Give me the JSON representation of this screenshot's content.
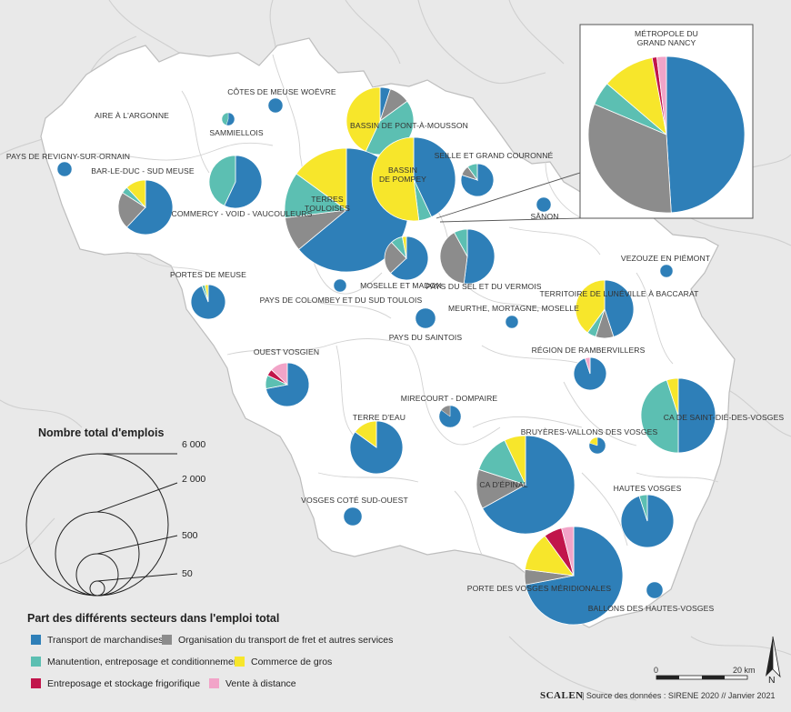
{
  "legend": {
    "size_title": "Nombre total d'emplois",
    "size_values": [
      "6 000",
      "2 000",
      "500",
      "50"
    ],
    "sector_title": "Part des différents secteurs dans l'emploi total",
    "sectors": [
      {
        "key": "transport",
        "label": "Transport de marchandises",
        "color": "#2e7fb8"
      },
      {
        "key": "organisation",
        "label": "Organisation du transport de fret et autres services",
        "color": "#8c8c8c"
      },
      {
        "key": "manutention",
        "label": "Manutention, entreposage et conditionnement",
        "color": "#5cbfb2"
      },
      {
        "key": "commerce",
        "label": "Commerce de gros",
        "color": "#f7e62b"
      },
      {
        "key": "frigo",
        "label": "Entreposage et stockage frigorifique",
        "color": "#c1154b"
      },
      {
        "key": "vente",
        "label": "Vente à distance",
        "color": "#f2a4c8"
      }
    ]
  },
  "inset": {
    "title_line1": "MÉTROPOLE DU",
    "title_line2": "GRAND NANCY"
  },
  "scale": {
    "zero": "0",
    "max": "20 km"
  },
  "north": "N",
  "footer": {
    "brand": "SCALEN",
    "source": "|  Source des données : SIRENE 2020  // Janvier 2021"
  },
  "territories": [
    {
      "name": "AIRE À L'ARGONNE",
      "shares": [
        100,
        0,
        0,
        0,
        0,
        0
      ]
    },
    {
      "name": "CÔTES DE MEUSE WOËVRE",
      "shares": [
        100,
        0,
        0,
        0,
        0,
        0
      ]
    },
    {
      "name": "SAMMIELLOIS",
      "shares": [
        55,
        0,
        45,
        0,
        0,
        0
      ]
    },
    {
      "name": "PAYS DE REVIGNY-SUR-ORNAIN",
      "shares": [
        100,
        0,
        0,
        0,
        0,
        0
      ]
    },
    {
      "name": "BAR-LE-DUC - SUD MEUSE",
      "shares": [
        62,
        22,
        4,
        12,
        0,
        0
      ]
    },
    {
      "name": "COMMERCY - VOID - VAUCOULEURS",
      "shares": [
        57,
        0,
        43,
        0,
        0,
        0
      ]
    },
    {
      "name": "BASSIN DE PONT-À-MOUSSON",
      "shares": [
        5,
        10,
        42,
        43,
        0,
        0
      ]
    },
    {
      "name": "TERRES TOULOISES",
      "shares": [
        64,
        9,
        12,
        15,
        0,
        0
      ]
    },
    {
      "name": "BASSIN DE POMPEY",
      "shares": [
        43,
        0,
        5,
        52,
        0,
        0
      ]
    },
    {
      "name": "SEILLE ET GRAND COURONNÉ",
      "shares": [
        80,
        10,
        10,
        0,
        0,
        0
      ]
    },
    {
      "name": "SÂNON",
      "shares": [
        100,
        0,
        0,
        0,
        0,
        0
      ]
    },
    {
      "name": "MOSELLE ET MADON",
      "shares": [
        63,
        25,
        9,
        3,
        0,
        0
      ]
    },
    {
      "name": "PAYS DU SEL ET DU VERMOIS",
      "shares": [
        52,
        40,
        8,
        0,
        0,
        0
      ]
    },
    {
      "name": "VEZOUZE EN PIÉMONT",
      "shares": [
        100,
        0,
        0,
        0,
        0,
        0
      ]
    },
    {
      "name": "PORTES DE MEUSE",
      "shares": [
        94,
        0,
        3,
        3,
        0,
        0
      ]
    },
    {
      "name": "PAYS DE COLOMBEY ET DU SUD TOULOIS",
      "shares": [
        100,
        0,
        0,
        0,
        0,
        0
      ]
    },
    {
      "name": "TERRITOIRE DE LUNÉVILLE À BACCARAT",
      "shares": [
        45,
        10,
        5,
        40,
        0,
        0
      ]
    },
    {
      "name": "MEURTHE, MORTAGNE, MOSELLE",
      "shares": [
        100,
        0,
        0,
        0,
        0,
        0
      ]
    },
    {
      "name": "PAYS DU SAINTOIS",
      "shares": [
        100,
        0,
        0,
        0,
        0,
        0
      ]
    },
    {
      "name": "RÉGION DE RAMBERVILLERS",
      "shares": [
        95,
        0,
        0,
        0,
        0,
        5
      ]
    },
    {
      "name": "OUEST VOSGIEN",
      "shares": [
        72,
        0,
        10,
        0,
        5,
        13
      ]
    },
    {
      "name": "MIRECOURT - DOMPAIRE",
      "shares": [
        85,
        15,
        0,
        0,
        0,
        0
      ]
    },
    {
      "name": "CA DE SAINT-DIÉ-DES-VOSGES",
      "shares": [
        50,
        0,
        45,
        5,
        0,
        0
      ]
    },
    {
      "name": "TERRE D'EAU",
      "shares": [
        85,
        0,
        0,
        15,
        0,
        0
      ]
    },
    {
      "name": "BRUYÈRES-VALLONS DES VOSGES",
      "shares": [
        80,
        0,
        0,
        20,
        0,
        0
      ]
    },
    {
      "name": "CA D'ÉPINAL",
      "shares": [
        67,
        13,
        13,
        7,
        0,
        0
      ]
    },
    {
      "name": "HAUTES VOSGES",
      "shares": [
        95,
        0,
        5,
        0,
        0,
        0
      ]
    },
    {
      "name": "VOSGES COTÉ SUD-OUEST",
      "shares": [
        100,
        0,
        0,
        0,
        0,
        0
      ]
    },
    {
      "name": "PORTE DES VOSGES MÉRIDIONALES",
      "shares": [
        72,
        5,
        0,
        13,
        6,
        4
      ]
    },
    {
      "name": "BALLONS DES HAUTES-VOSGES",
      "shares": [
        100,
        0,
        0,
        0,
        0,
        0
      ]
    },
    {
      "name": "MÉTROPOLE DU GRAND NANCY",
      "shares": [
        50,
        33,
        5,
        11,
        1,
        2
      ]
    }
  ]
}
